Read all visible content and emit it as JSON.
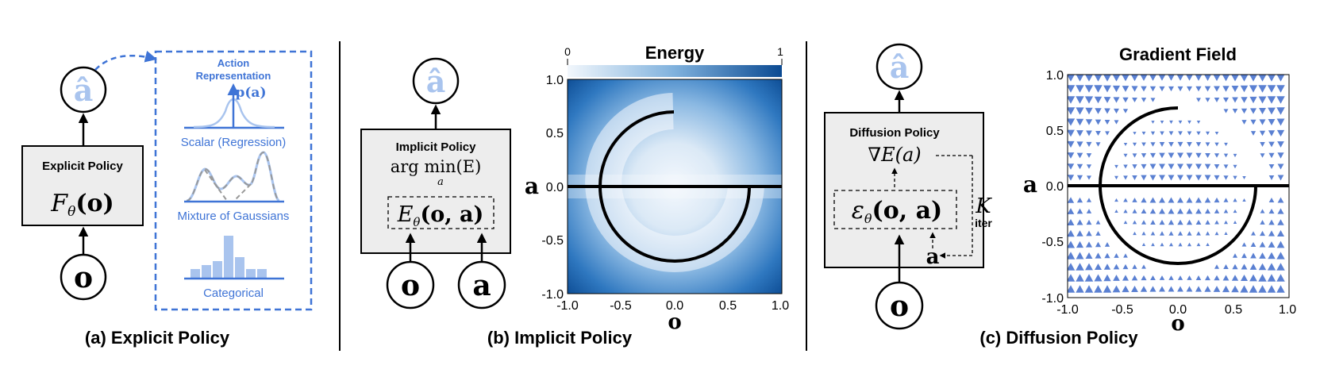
{
  "panels": {
    "explicit": {
      "caption": "(a) Explicit Policy",
      "box_title": "Explicit Policy",
      "formula_main": "F",
      "formula_sub": "θ",
      "formula_arg": "(o)",
      "output_symbol": "â",
      "input_symbol": "o",
      "action_rep": {
        "title_line1": "Action",
        "title_line2": "Representation",
        "pdf_label": "p(a)",
        "items": [
          "Scalar (Regression)",
          "Mixture of Gaussians",
          "Categorical"
        ]
      }
    },
    "implicit": {
      "caption": "(b) Implicit Policy",
      "box_title": "Implicit Policy",
      "argmin_text": "arg min(E)",
      "argmin_sub": "a",
      "energy_main": "E",
      "energy_sub": "θ",
      "energy_arg": "(o, a)",
      "output_symbol": "â",
      "input_o": "o",
      "input_a": "a",
      "plot": {
        "title": "Energy",
        "colorbar_min": "0",
        "colorbar_max": "1",
        "xlabel": "o",
        "ylabel": "a",
        "xticks": [
          "-1.0",
          "-0.5",
          "0.0",
          "0.5",
          "1.0"
        ],
        "yticks": [
          "1.0",
          "0.5",
          "0.0",
          "-0.5",
          "-1.0"
        ]
      }
    },
    "diffusion": {
      "caption": "(c) Diffusion Policy",
      "box_title": "Diffusion Policy",
      "grad_text": "∇E(a)",
      "eps_main": "ε",
      "eps_sub": "θ",
      "eps_arg": "(o, a)",
      "k_label": "K",
      "iter_label": "iter",
      "a_symbol": "a",
      "output_symbol": "â",
      "input_symbol": "o",
      "plot": {
        "title": "Gradient Field",
        "xlabel": "o",
        "ylabel": "a",
        "xticks": [
          "-1.0",
          "-0.5",
          "0.0",
          "0.5",
          "1.0"
        ],
        "yticks": [
          "1.0",
          "0.5",
          "0.0",
          "-0.5",
          "-1.0"
        ]
      }
    }
  },
  "colors": {
    "accent_blue": "#3f74d6",
    "light_blue": "#a9c4ee",
    "box_fill": "#ededed",
    "field_blue": "#5a80d2",
    "energy_dark": "#0b4a92",
    "energy_light": "#eef4fb"
  }
}
